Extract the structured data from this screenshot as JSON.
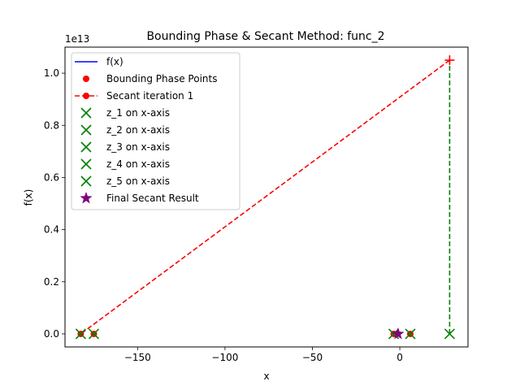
{
  "chart_data": {
    "type": "line",
    "title": "Bounding Phase & Secant Method: func_2",
    "xlabel": "x",
    "ylabel": "f(x)",
    "y_offset_label": "1e13",
    "xlim": [
      -191.5,
      39
    ],
    "ylim": [
      -0.05,
      1.1
    ],
    "y_scale_factor": 10000000000000.0,
    "x_ticks": [
      -150,
      -100,
      -50,
      0
    ],
    "x_tick_labels": [
      "−150",
      "−100",
      "−50",
      "0"
    ],
    "y_ticks": [
      0.0,
      0.2,
      0.4,
      0.6,
      0.8,
      1.0
    ],
    "y_tick_labels": [
      "0.0",
      "0.2",
      "0.4",
      "0.6",
      "0.8",
      "1.0"
    ],
    "grid": false,
    "legend_position": "top-left",
    "colors": {
      "f_x": "#0000ff",
      "bounding": "#ff0000",
      "secant": "#ff0000",
      "z_markers": "#008000",
      "final": "#800080",
      "z_vertical": "#008000"
    },
    "legend": [
      {
        "label": "f(x)",
        "kind": "line",
        "color": "#0000ff"
      },
      {
        "label": "Bounding Phase Points",
        "kind": "dot",
        "color": "#ff0000"
      },
      {
        "label": "Secant iteration 1",
        "kind": "dashdot",
        "color": "#ff0000"
      },
      {
        "label": "z_1 on x-axis",
        "kind": "x",
        "color": "#008000"
      },
      {
        "label": "z_2 on x-axis",
        "kind": "x",
        "color": "#008000"
      },
      {
        "label": "z_3 on x-axis",
        "kind": "x",
        "color": "#008000"
      },
      {
        "label": "z_4 on x-axis",
        "kind": "x",
        "color": "#008000"
      },
      {
        "label": "z_5 on x-axis",
        "kind": "x",
        "color": "#008000"
      },
      {
        "label": "Final Secant Result",
        "kind": "star",
        "color": "#800080"
      }
    ],
    "bounding_points": [
      {
        "x": -182.5,
        "y": 0.0
      },
      {
        "x": -175,
        "y": 0.0
      },
      {
        "x": -3.5,
        "y": 0.0
      },
      {
        "x": 6,
        "y": 0.0
      }
    ],
    "secant_points": [
      {
        "x": 28.5,
        "y": 1.05
      },
      {
        "x": -182.5,
        "y": 0.0
      }
    ],
    "z_points": [
      {
        "x": -182.5,
        "y": 0.0
      },
      {
        "x": -175,
        "y": 0.0
      },
      {
        "x": -3.5,
        "y": 0.0
      },
      {
        "x": 6,
        "y": 0.0
      },
      {
        "x": 28.5,
        "y": 0.0
      }
    ],
    "z_vertical_line": {
      "x": 28.5,
      "y_from": 0.0,
      "y_to": 1.05
    },
    "final_point": {
      "x": -1,
      "y": 0.0
    },
    "top_marker": {
      "x": 28.5,
      "y": 1.05
    }
  }
}
